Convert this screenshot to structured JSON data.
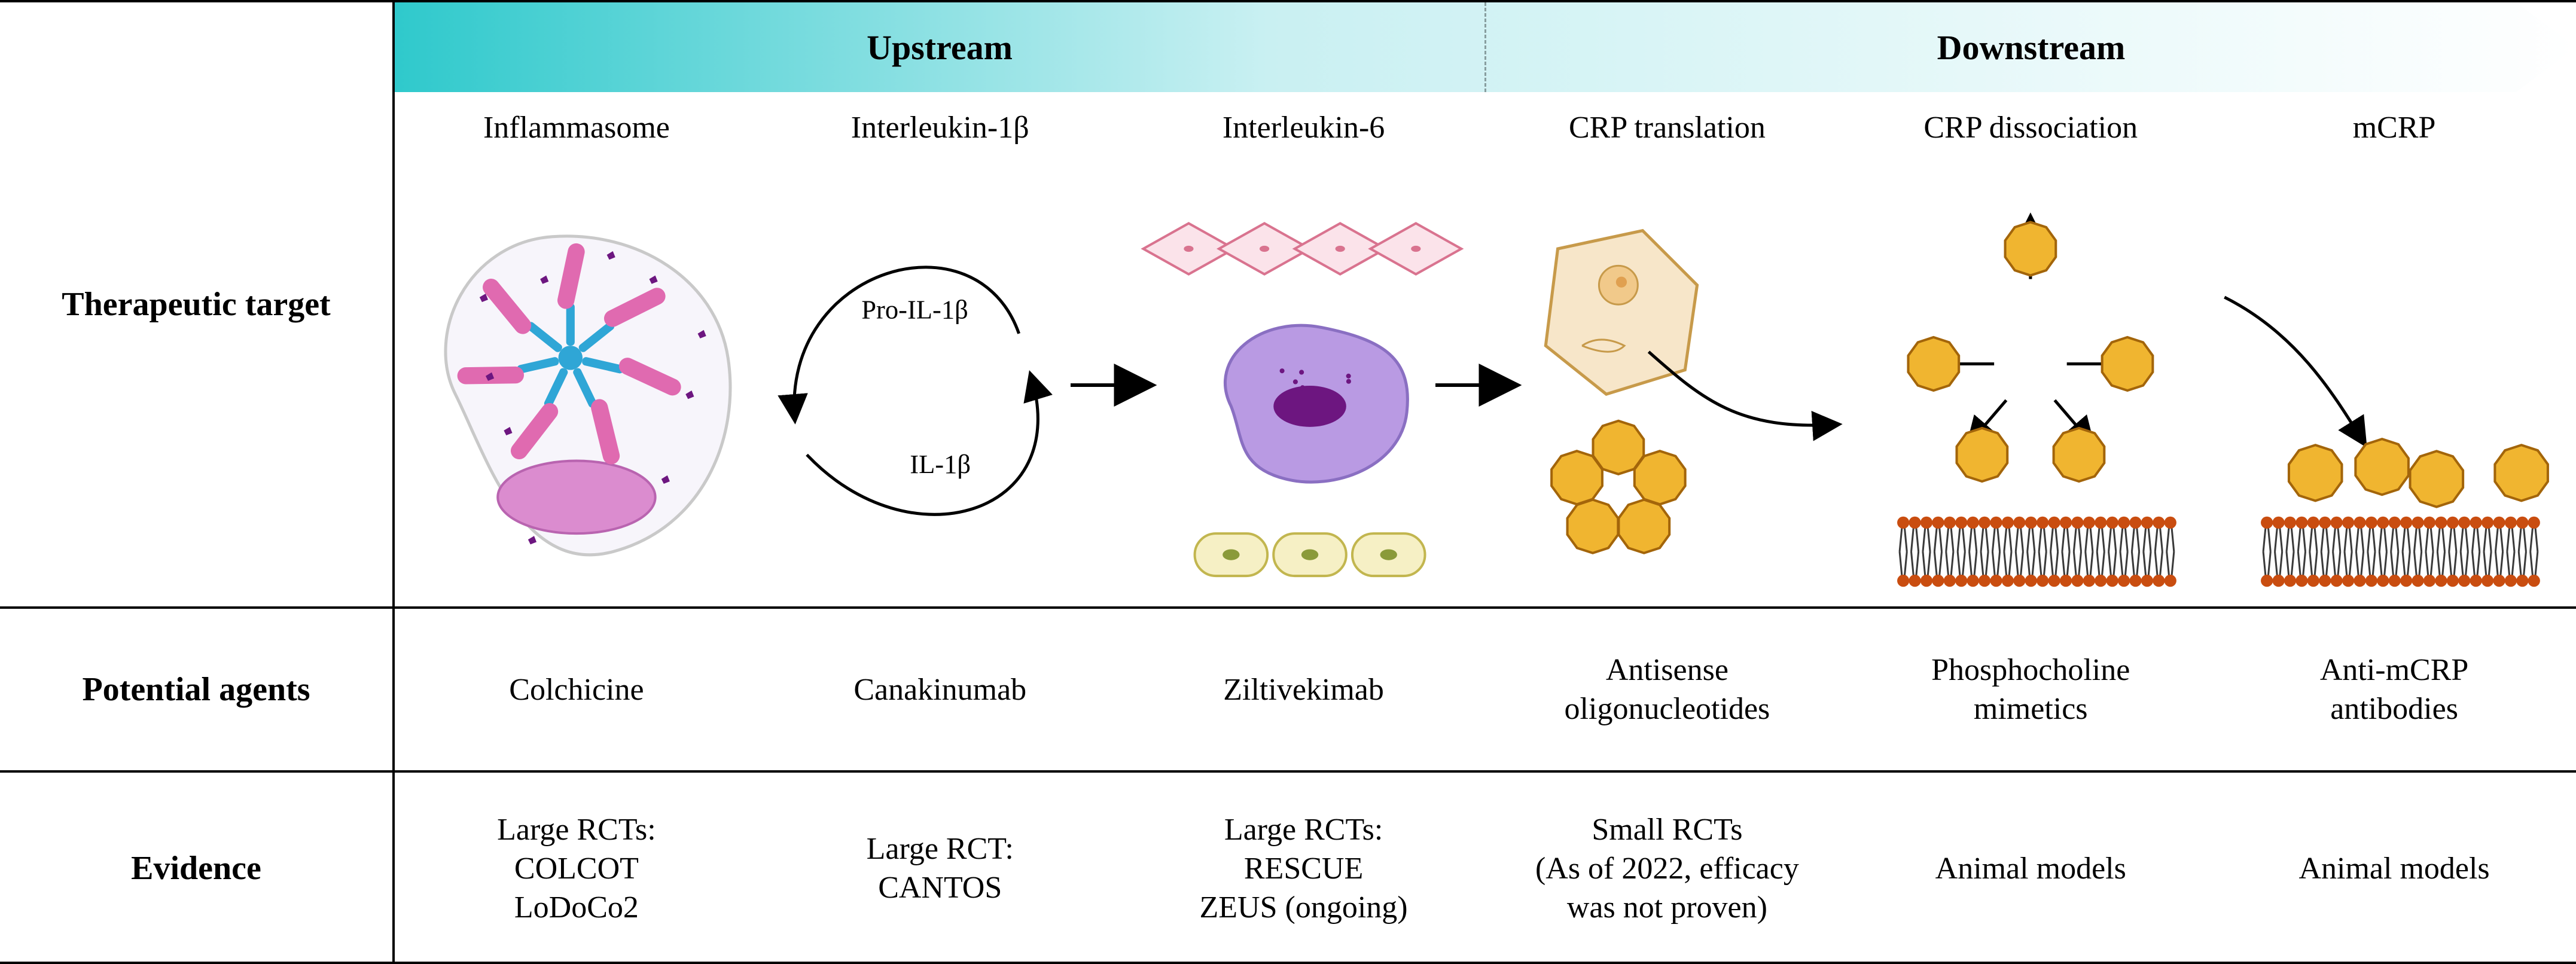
{
  "banner": {
    "upstream_label": "Upstream",
    "downstream_label": "Downstream",
    "gradient_start": "#2fc9cc",
    "gradient_mid": "#c9f0f2",
    "gradient_end": "#ffffff"
  },
  "rows": {
    "target_label": "Therapeutic target",
    "agents_label": "Potential agents",
    "evidence_label": "Evidence"
  },
  "columns": [
    {
      "title": "Inflammasome",
      "agent": "Colchicine",
      "evidence": "Large RCTs:\nCOLCOT\nLoDoCo2"
    },
    {
      "title": "Interleukin-1β",
      "agent": "Canakinumab",
      "evidence": "Large RCT:\nCANTOS"
    },
    {
      "title": "Interleukin-6",
      "agent": "Ziltivekimab",
      "evidence": "Large RCTs:\nRESCUE\nZEUS (ongoing)"
    },
    {
      "title": "CRP translation",
      "agent": "Antisense\noligonucleotides",
      "evidence": "Small RCTs\n(As of 2022, efficacy\nwas not proven)"
    },
    {
      "title": "CRP dissociation",
      "agent": "Phosphocholine\nmimetics",
      "evidence": "Animal models"
    },
    {
      "title": "mCRP",
      "agent": "Anti-mCRP\nantibodies",
      "evidence": "Animal models"
    }
  ],
  "il1_loop": {
    "pro_label": "Pro-IL-1β",
    "product_label": "IL-1β"
  },
  "palette": {
    "inflammasome_outline": "#c9c9c9",
    "inflammasome_fill": "#f7f5fb",
    "spoke_color": "#2fa6d6",
    "rod_color": "#e06ab0",
    "nucleus_color": "#db8ccf",
    "epithelial_fill": "#fbe3ea",
    "epithelial_stroke": "#d9738f",
    "macrophage_fill": "#b99ae3",
    "macrophage_nucleus": "#6d1680",
    "endothelial_fill": "#f6f0c5",
    "endothelial_stroke": "#c2b64f",
    "hepatocyte_fill": "#f7e6c9",
    "hepatocyte_stroke": "#c79a4a",
    "crp_fill": "#f0b530",
    "crp_stroke": "#a3650a",
    "membrane_head": "#c94d10",
    "membrane_tail": "#3a3a3a",
    "arrow_stroke": "#000000"
  },
  "typography": {
    "title_fontsize": 56,
    "col_title_fontsize": 52,
    "cell_fontsize": 52,
    "il1_fontsize": 44
  }
}
